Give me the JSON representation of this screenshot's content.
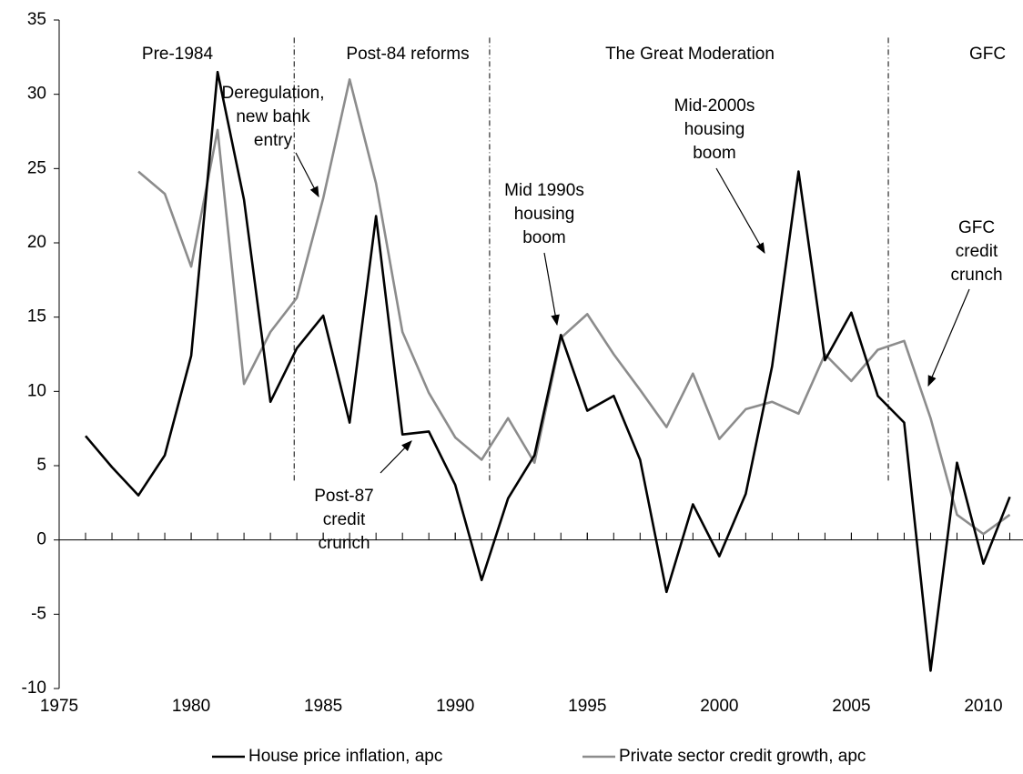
{
  "chart_data": {
    "type": "line",
    "x": [
      1976,
      1977,
      1978,
      1979,
      1980,
      1981,
      1982,
      1983,
      1984,
      1985,
      1986,
      1987,
      1988,
      1989,
      1990,
      1991,
      1992,
      1993,
      1994,
      1995,
      1996,
      1997,
      1998,
      1999,
      2000,
      2001,
      2002,
      2003,
      2004,
      2005,
      2006,
      2007,
      2008,
      2009,
      2010,
      2011
    ],
    "series": [
      {
        "name": "House price inflation, apc",
        "color": "#000000",
        "values": [
          7,
          4.9,
          3,
          5.7,
          12.4,
          31.5,
          22.9,
          9.3,
          12.9,
          15.1,
          7.9,
          21.8,
          7.1,
          7.3,
          3.7,
          -2.7,
          2.8,
          5.7,
          13.8,
          8.7,
          9.7,
          5.4,
          -3.5,
          2.4,
          -1.1,
          3.1,
          11.7,
          24.8,
          12.1,
          15.3,
          9.7,
          7.9,
          -8.8,
          5.2,
          -1.6,
          2.9
        ]
      },
      {
        "name": "Private sector credit growth, apc",
        "color": "#8c8c8c",
        "values": [
          null,
          null,
          24.8,
          23.3,
          18.4,
          27.6,
          10.5,
          14,
          16.3,
          23,
          31,
          24,
          14,
          9.9,
          6.9,
          5.4,
          8.2,
          5.2,
          13.6,
          15.2,
          12.5,
          10.1,
          7.6,
          11.2,
          6.8,
          8.8,
          9.3,
          8.5,
          12.5,
          10.7,
          12.8,
          13.4,
          8.2,
          1.7,
          0.4,
          1.7
        ]
      }
    ],
    "xlim": [
      1975,
      2011.5
    ],
    "xticks": [
      1975,
      1980,
      1985,
      1990,
      1995,
      2000,
      2005,
      2010
    ],
    "ylim": [
      -10,
      35
    ],
    "yticks": [
      -10,
      -5,
      0,
      5,
      10,
      15,
      20,
      25,
      30,
      35
    ],
    "period_dividers": [
      1983.9,
      1991.3,
      2006.4
    ],
    "periods": [
      "Pre-1984",
      "Post-84 reforms",
      "The Great Moderation",
      "GFC"
    ],
    "annotations": [
      [
        "Deregulation,",
        "new bank",
        "entry"
      ],
      [
        "Post-87",
        "credit",
        "crunch"
      ],
      [
        "Mid 1990s",
        "housing",
        "boom"
      ],
      [
        "Mid-2000s",
        "housing",
        "boom"
      ],
      [
        "GFC",
        "credit",
        "crunch"
      ]
    ],
    "legend": "bottom"
  }
}
